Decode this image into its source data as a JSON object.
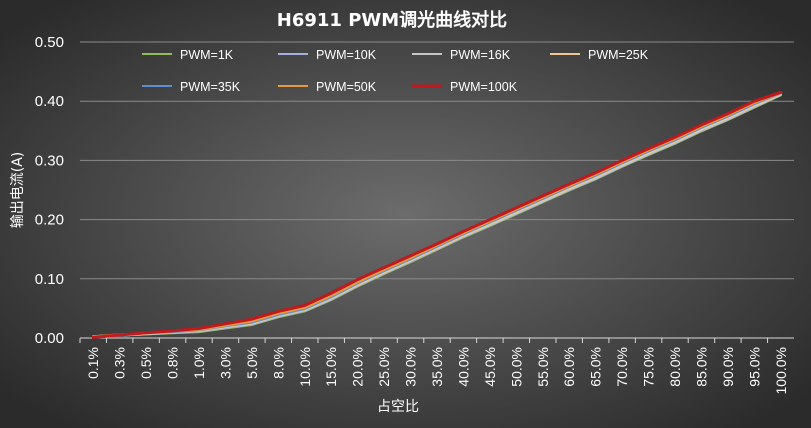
{
  "chart_data": {
    "type": "line",
    "title": "H6911 PWM调光曲线对比",
    "xlabel": "占空比",
    "ylabel": "输出电流(A)",
    "ylim": [
      0,
      0.5
    ],
    "y_ticks": [
      "0.00",
      "0.10",
      "0.20",
      "0.30",
      "0.40",
      "0.50"
    ],
    "grid": "horizontal",
    "legend_position": "top",
    "categories": [
      "0.1%",
      "0.3%",
      "0.5%",
      "0.8%",
      "1.0%",
      "3.0%",
      "5.0%",
      "8.0%",
      "10.0%",
      "15.0%",
      "20.0%",
      "25.0%",
      "30.0%",
      "35.0%",
      "40.0%",
      "45.0%",
      "50.0%",
      "55.0%",
      "60.0%",
      "65.0%",
      "70.0%",
      "75.0%",
      "80.0%",
      "85.0%",
      "90.0%",
      "95.0%",
      "100.0%"
    ],
    "series": [
      {
        "name": "PWM=1K",
        "color": "#8fbd56",
        "values": [
          0.002,
          0.004,
          0.006,
          0.008,
          0.01,
          0.016,
          0.022,
          0.035,
          0.045,
          0.064,
          0.087,
          0.108,
          0.128,
          0.149,
          0.17,
          0.189,
          0.209,
          0.229,
          0.249,
          0.268,
          0.289,
          0.309,
          0.328,
          0.349,
          0.368,
          0.389,
          0.41
        ]
      },
      {
        "name": "PWM=10K",
        "color": "#a7aee0",
        "values": [
          0.002,
          0.004,
          0.006,
          0.009,
          0.011,
          0.017,
          0.023,
          0.036,
          0.046,
          0.065,
          0.088,
          0.109,
          0.129,
          0.15,
          0.171,
          0.19,
          0.21,
          0.23,
          0.25,
          0.269,
          0.29,
          0.31,
          0.329,
          0.35,
          0.369,
          0.39,
          0.411
        ]
      },
      {
        "name": "PWM=16K",
        "color": "#c7c7c7",
        "values": [
          0.003,
          0.005,
          0.007,
          0.009,
          0.012,
          0.018,
          0.024,
          0.037,
          0.047,
          0.066,
          0.089,
          0.11,
          0.13,
          0.151,
          0.172,
          0.191,
          0.211,
          0.231,
          0.251,
          0.27,
          0.291,
          0.311,
          0.33,
          0.351,
          0.37,
          0.391,
          0.411
        ]
      },
      {
        "name": "PWM=25K",
        "color": "#f2c48f",
        "values": [
          0.003,
          0.005,
          0.007,
          0.01,
          0.012,
          0.019,
          0.025,
          0.038,
          0.048,
          0.068,
          0.09,
          0.111,
          0.131,
          0.152,
          0.173,
          0.193,
          0.213,
          0.233,
          0.253,
          0.272,
          0.293,
          0.313,
          0.332,
          0.353,
          0.372,
          0.393,
          0.412
        ]
      },
      {
        "name": "PWM=35K",
        "color": "#5b8fd1",
        "values": [
          0.003,
          0.005,
          0.008,
          0.01,
          0.013,
          0.02,
          0.026,
          0.039,
          0.049,
          0.069,
          0.092,
          0.113,
          0.133,
          0.154,
          0.175,
          0.195,
          0.215,
          0.235,
          0.255,
          0.274,
          0.295,
          0.315,
          0.334,
          0.355,
          0.374,
          0.395,
          0.413
        ]
      },
      {
        "name": "PWM=50K",
        "color": "#e79a3c",
        "values": [
          0.003,
          0.006,
          0.008,
          0.011,
          0.014,
          0.021,
          0.028,
          0.041,
          0.051,
          0.071,
          0.094,
          0.115,
          0.135,
          0.156,
          0.177,
          0.197,
          0.217,
          0.237,
          0.257,
          0.276,
          0.297,
          0.317,
          0.336,
          0.357,
          0.376,
          0.397,
          0.414
        ]
      },
      {
        "name": "PWM=100K",
        "color": "#c0191e",
        "values": [
          0.001,
          0.005,
          0.009,
          0.012,
          0.016,
          0.024,
          0.032,
          0.045,
          0.055,
          0.076,
          0.099,
          0.119,
          0.139,
          0.159,
          0.18,
          0.2,
          0.22,
          0.24,
          0.26,
          0.279,
          0.3,
          0.32,
          0.339,
          0.36,
          0.379,
          0.4,
          0.415
        ]
      }
    ]
  }
}
